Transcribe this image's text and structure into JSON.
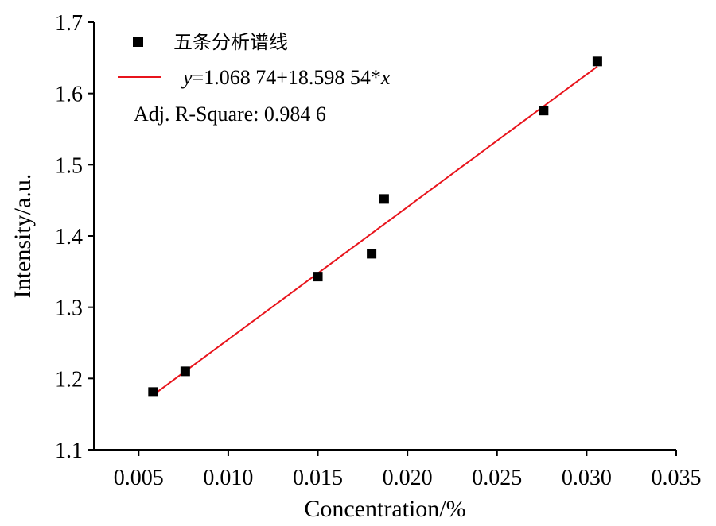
{
  "chart_data": {
    "type": "scatter",
    "xlabel": "Concentration/%",
    "ylabel": "Intensity/a.u.",
    "xlim": [
      0.0025,
      0.035
    ],
    "ylim": [
      1.1,
      1.7
    ],
    "x_ticks": [
      0.005,
      0.01,
      0.015,
      0.02,
      0.025,
      0.03,
      0.035
    ],
    "x_tick_labels": [
      "0.005",
      "0.010",
      "0.015",
      "0.020",
      "0.025",
      "0.030",
      "0.035"
    ],
    "y_ticks": [
      1.1,
      1.2,
      1.3,
      1.4,
      1.5,
      1.6,
      1.7
    ],
    "y_tick_labels": [
      "1.1",
      "1.2",
      "1.3",
      "1.4",
      "1.5",
      "1.6",
      "1.7"
    ],
    "grid": false,
    "legend_position": "top-left",
    "series": [
      {
        "name": "五条分析谱线",
        "marker": "square",
        "color": "#000000",
        "x": [
          0.0058,
          0.0076,
          0.015,
          0.018,
          0.0187,
          0.0276,
          0.0306
        ],
        "y": [
          1.181,
          1.21,
          1.343,
          1.375,
          1.452,
          1.576,
          1.645
        ]
      }
    ],
    "fit": {
      "equation_prefix": "y",
      "equation_body": "=1.068 74+18.598 54*",
      "equation_suffix": "x",
      "intercept": 1.06874,
      "slope": 18.59854,
      "x_range": [
        0.0058,
        0.0306
      ],
      "color": "#e8141c"
    },
    "annotation": "Adj. R-Square:  0.984 6"
  }
}
